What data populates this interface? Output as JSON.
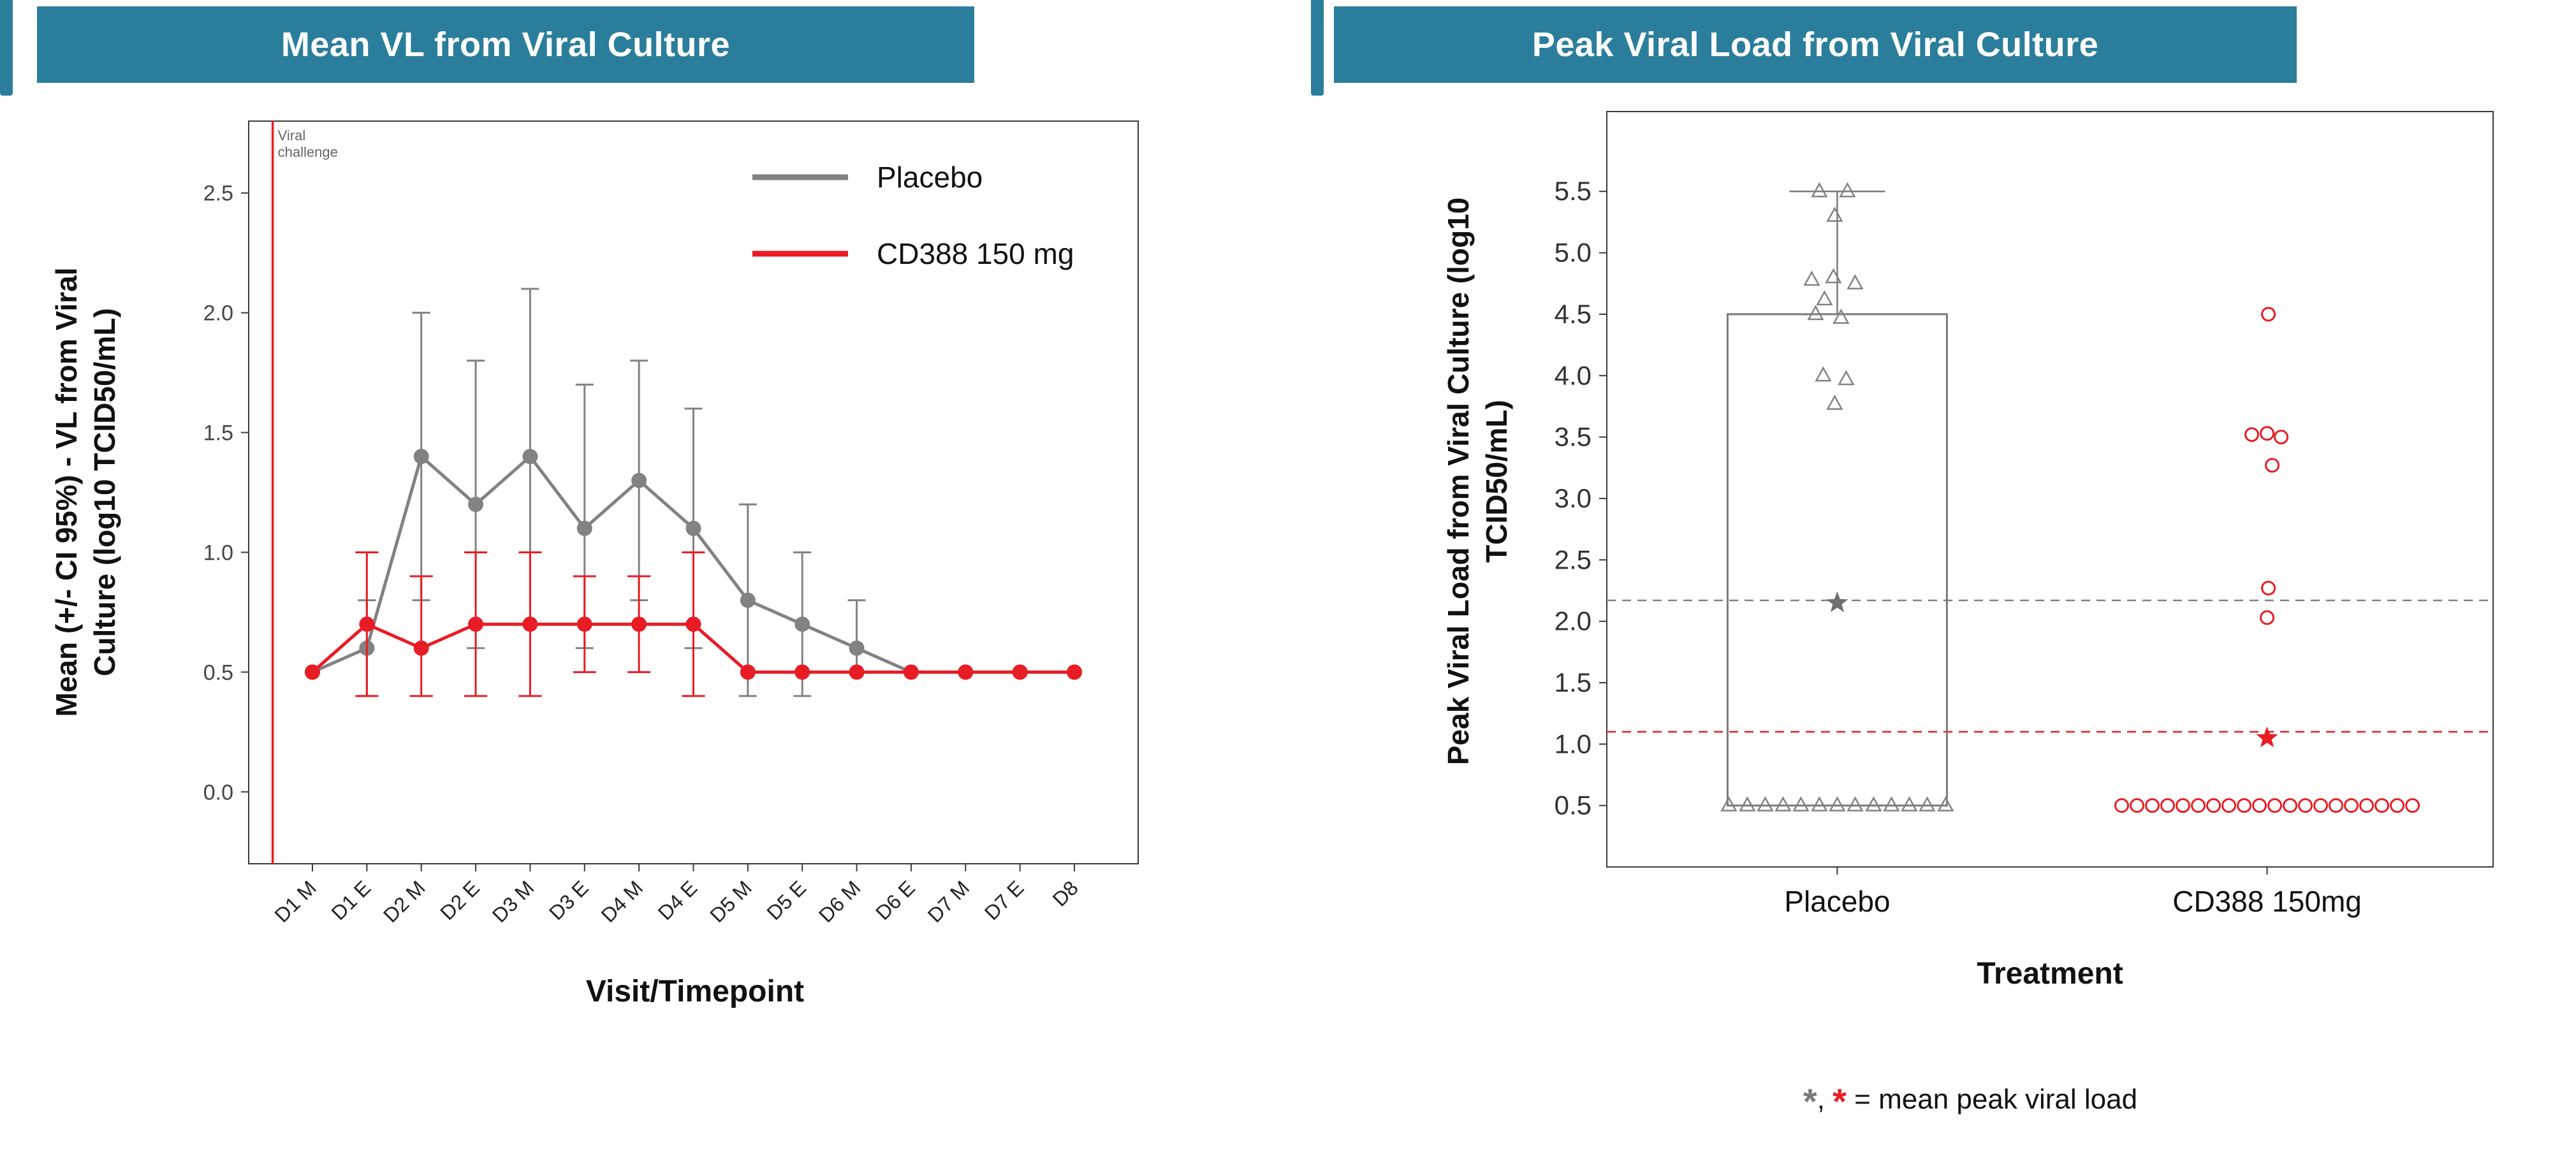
{
  "theme": {
    "header_color": "#2b7e9b",
    "placebo_color": "#828282",
    "cd388_color": "#e81c24"
  },
  "left_panel": {
    "title": "Mean VL from Viral Culture",
    "ylabel_lines": [
      "Mean (+/- CI 95%) - VL from Viral",
      "Culture (log10 TCID50/mL)"
    ],
    "xlabel": "Visit/Timepoint"
  },
  "right_panel": {
    "title": "Peak Viral Load from Viral Culture",
    "ylabel_lines": [
      "Peak Viral Load from Viral Culture (log10",
      "TCID50/mL)"
    ],
    "xlabel": "Treatment",
    "footnote": {
      "marker1": "*",
      "separator": ", ",
      "marker2": "*",
      "text": " = mean peak viral load"
    }
  },
  "chart_data": [
    {
      "type": "line",
      "title": "Mean VL from Viral Culture",
      "xlabel": "Visit/Timepoint",
      "ylabel": "Mean (+/- CI 95%) - VL from Viral Culture (log10 TCID50/mL)",
      "categories": [
        "D1 M",
        "D1 E",
        "D2 M",
        "D2 E",
        "D3 M",
        "D3 E",
        "D4 M",
        "D4 E",
        "D5 M",
        "D5 E",
        "D6 M",
        "D6 E",
        "D7 M",
        "D7 E",
        "D8"
      ],
      "yticks": [
        0.0,
        0.5,
        1.0,
        1.5,
        2.0,
        2.5
      ],
      "ylim": [
        -0.3,
        2.8
      ],
      "grid": false,
      "legend_position": "top-right",
      "annotation": {
        "label_lines": [
          "Viral",
          "challenge"
        ],
        "x_fraction": 0.027,
        "color": "#ee1c25"
      },
      "series": [
        {
          "name": "Placebo",
          "color": "#828282",
          "values": [
            0.5,
            0.6,
            1.4,
            1.2,
            1.4,
            1.1,
            1.3,
            1.1,
            0.8,
            0.7,
            0.6,
            0.5,
            0.5,
            0.5,
            0.5
          ],
          "lower": [
            0.5,
            0.4,
            0.8,
            0.6,
            0.7,
            0.6,
            0.8,
            0.6,
            0.4,
            0.4,
            0.5,
            0.5,
            0.5,
            0.5,
            0.5
          ],
          "upper": [
            0.5,
            0.8,
            2.0,
            1.8,
            2.1,
            1.7,
            1.8,
            1.6,
            1.2,
            1.0,
            0.8,
            0.5,
            0.5,
            0.5,
            0.5
          ]
        },
        {
          "name": "CD388 150 mg",
          "color": "#e81c24",
          "values": [
            0.5,
            0.7,
            0.6,
            0.7,
            0.7,
            0.7,
            0.7,
            0.7,
            0.5,
            0.5,
            0.5,
            0.5,
            0.5,
            0.5,
            0.5
          ],
          "lower": [
            0.5,
            0.4,
            0.4,
            0.4,
            0.4,
            0.5,
            0.5,
            0.4,
            0.5,
            0.5,
            0.5,
            0.5,
            0.5,
            0.5,
            0.5
          ],
          "upper": [
            0.5,
            1.0,
            0.9,
            1.0,
            1.0,
            0.9,
            0.9,
            1.0,
            0.5,
            0.5,
            0.5,
            0.5,
            0.5,
            0.5,
            0.5
          ]
        }
      ]
    },
    {
      "type": "scatter",
      "title": "Peak Viral Load from Viral Culture",
      "xlabel": "Treatment",
      "ylabel": "Peak Viral Load from Viral Culture (log10 TCID50/mL)",
      "yticks": [
        0.5,
        1.0,
        1.5,
        2.0,
        2.5,
        3.0,
        3.5,
        4.0,
        4.5,
        5.0,
        5.5
      ],
      "ylim": [
        0.0,
        6.15
      ],
      "footnote": "*, * = mean peak viral load",
      "groups": [
        {
          "name": "Placebo",
          "color": "#828282",
          "marker": "triangle",
          "center_fraction": 0.26,
          "box": {
            "low": 0.5,
            "high": 4.5,
            "whisker_high": 5.5
          },
          "mean": 2.15,
          "mean_line": 2.17,
          "points": [
            [
              -28,
              5.5
            ],
            [
              16,
              5.5
            ],
            [
              -4,
              5.3
            ],
            [
              -40,
              4.78
            ],
            [
              -6,
              4.8
            ],
            [
              28,
              4.75
            ],
            [
              -20,
              4.62
            ],
            [
              -34,
              4.5
            ],
            [
              6,
              4.47
            ],
            [
              -22,
              4.0
            ],
            [
              14,
              3.97
            ],
            [
              -4,
              3.77
            ],
            [
              -170,
              0.5
            ],
            [
              -141,
              0.5
            ],
            [
              -113,
              0.5
            ],
            [
              -85,
              0.5
            ],
            [
              -57,
              0.5
            ],
            [
              -28,
              0.5
            ],
            [
              0,
              0.5
            ],
            [
              28,
              0.5
            ],
            [
              57,
              0.5
            ],
            [
              85,
              0.5
            ],
            [
              113,
              0.5
            ],
            [
              141,
              0.5
            ],
            [
              170,
              0.5
            ]
          ]
        },
        {
          "name": "CD388 150mg",
          "color": "#e81c24",
          "marker": "circle",
          "center_fraction": 0.745,
          "mean": 1.05,
          "mean_line": 1.1,
          "points": [
            [
              2,
              4.5
            ],
            [
              -24,
              3.52
            ],
            [
              0,
              3.53
            ],
            [
              22,
              3.5
            ],
            [
              8,
              3.27
            ],
            [
              2,
              2.27
            ],
            [
              0,
              2.03
            ],
            [
              -228,
              0.5
            ],
            [
              -204,
              0.5
            ],
            [
              -180,
              0.5
            ],
            [
              -156,
              0.5
            ],
            [
              -132,
              0.5
            ],
            [
              -108,
              0.5
            ],
            [
              -84,
              0.5
            ],
            [
              -60,
              0.5
            ],
            [
              -36,
              0.5
            ],
            [
              -12,
              0.5
            ],
            [
              12,
              0.5
            ],
            [
              36,
              0.5
            ],
            [
              60,
              0.5
            ],
            [
              84,
              0.5
            ],
            [
              108,
              0.5
            ],
            [
              132,
              0.5
            ],
            [
              156,
              0.5
            ],
            [
              180,
              0.5
            ],
            [
              204,
              0.5
            ],
            [
              228,
              0.5
            ]
          ]
        }
      ]
    }
  ]
}
